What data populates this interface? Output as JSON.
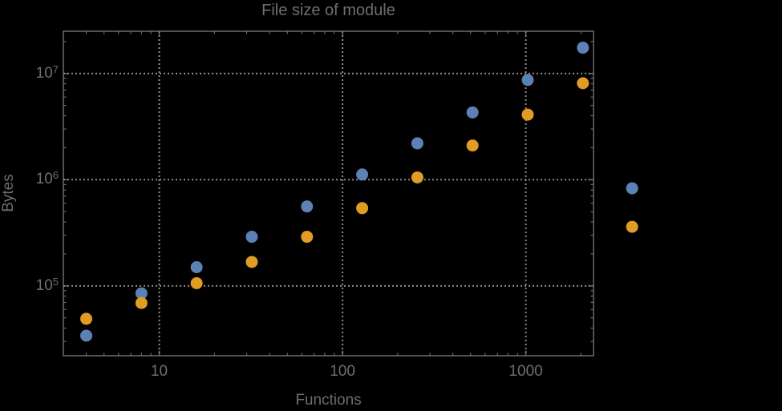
{
  "colors": {
    "background": "#000000",
    "text": "#6e6e6e",
    "frame": "#7d7d7d",
    "tick": "#7d7d7d",
    "grid": "#8c8c8c",
    "series_blue": "#5e81b5",
    "series_orange": "#e19c24"
  },
  "chart_data": {
    "type": "scatter",
    "title": "File size of module",
    "xlabel": "Functions",
    "ylabel": "Bytes",
    "x_scale": "log",
    "y_scale": "log",
    "xlim": [
      3,
      2340
    ],
    "ylim": [
      22000,
      25000000
    ],
    "grid": "dotted major gridlines at decades",
    "legend": "none",
    "marker": "filled circle",
    "x": [
      4,
      8,
      16,
      32,
      64,
      128,
      256,
      512,
      1024,
      2048,
      3800
    ],
    "series": [
      {
        "name": "blue",
        "color": "#5e81b5",
        "values": [
          34000,
          85000,
          150000,
          290000,
          560000,
          1120000,
          2200000,
          4300000,
          8700000,
          17500000,
          830000
        ]
      },
      {
        "name": "orange",
        "color": "#e19c24",
        "values": [
          49000,
          69000,
          106000,
          168000,
          290000,
          540000,
          1050000,
          2100000,
          4100000,
          8100000,
          360000
        ]
      }
    ],
    "x_major_ticks": [
      {
        "value": 10,
        "label": "10"
      },
      {
        "value": 100,
        "label": "100"
      },
      {
        "value": 1000,
        "label": "1000"
      }
    ],
    "y_major_ticks": [
      {
        "value": 100000,
        "base": "10",
        "exponent": "5"
      },
      {
        "value": 1000000,
        "base": "10",
        "exponent": "6"
      },
      {
        "value": 10000000,
        "base": "10",
        "exponent": "7"
      }
    ],
    "note_out_of_frame_points": "last x pair (blue 830000, orange 360000) is drawn right of the plot frame"
  }
}
